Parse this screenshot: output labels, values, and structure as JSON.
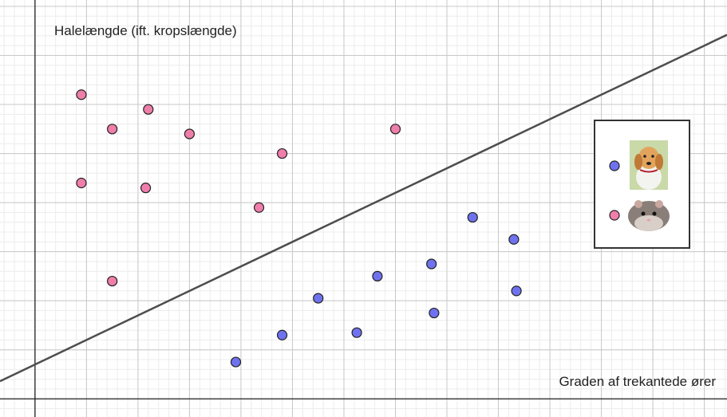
{
  "chart_data": {
    "type": "scatter",
    "x_label": "Graden af trekantede ører",
    "y_label": "Halelængde (ift. kropslængde)",
    "xlim": [
      -0.68,
      13.44
    ],
    "ylim": [
      -0.37,
      8.13
    ],
    "grid": {
      "major": 1,
      "minor": 0.2
    },
    "series": [
      {
        "color": "#ef7eaa",
        "x": [
          0.9,
          2.2,
          1.5,
          3.0,
          4.8,
          7.0,
          0.9,
          2.15,
          4.35,
          1.5
        ],
        "values": [
          6.2,
          5.9,
          5.5,
          5.4,
          5.0,
          5.5,
          4.4,
          4.3,
          3.9,
          2.4
        ]
      },
      {
        "color": "#6f72ee",
        "x": [
          8.5,
          9.3,
          7.7,
          6.65,
          5.5,
          7.75,
          9.35,
          6.25,
          4.8,
          3.9
        ],
        "values": [
          3.7,
          3.25,
          2.75,
          2.5,
          2.05,
          1.75,
          2.2,
          1.35,
          1.3,
          0.75
        ]
      }
    ],
    "lines": [
      {
        "color": "#4d4d4d",
        "x": [
          -0.68,
          13.44
        ],
        "values": [
          0.36,
          7.42
        ]
      }
    ]
  }
}
